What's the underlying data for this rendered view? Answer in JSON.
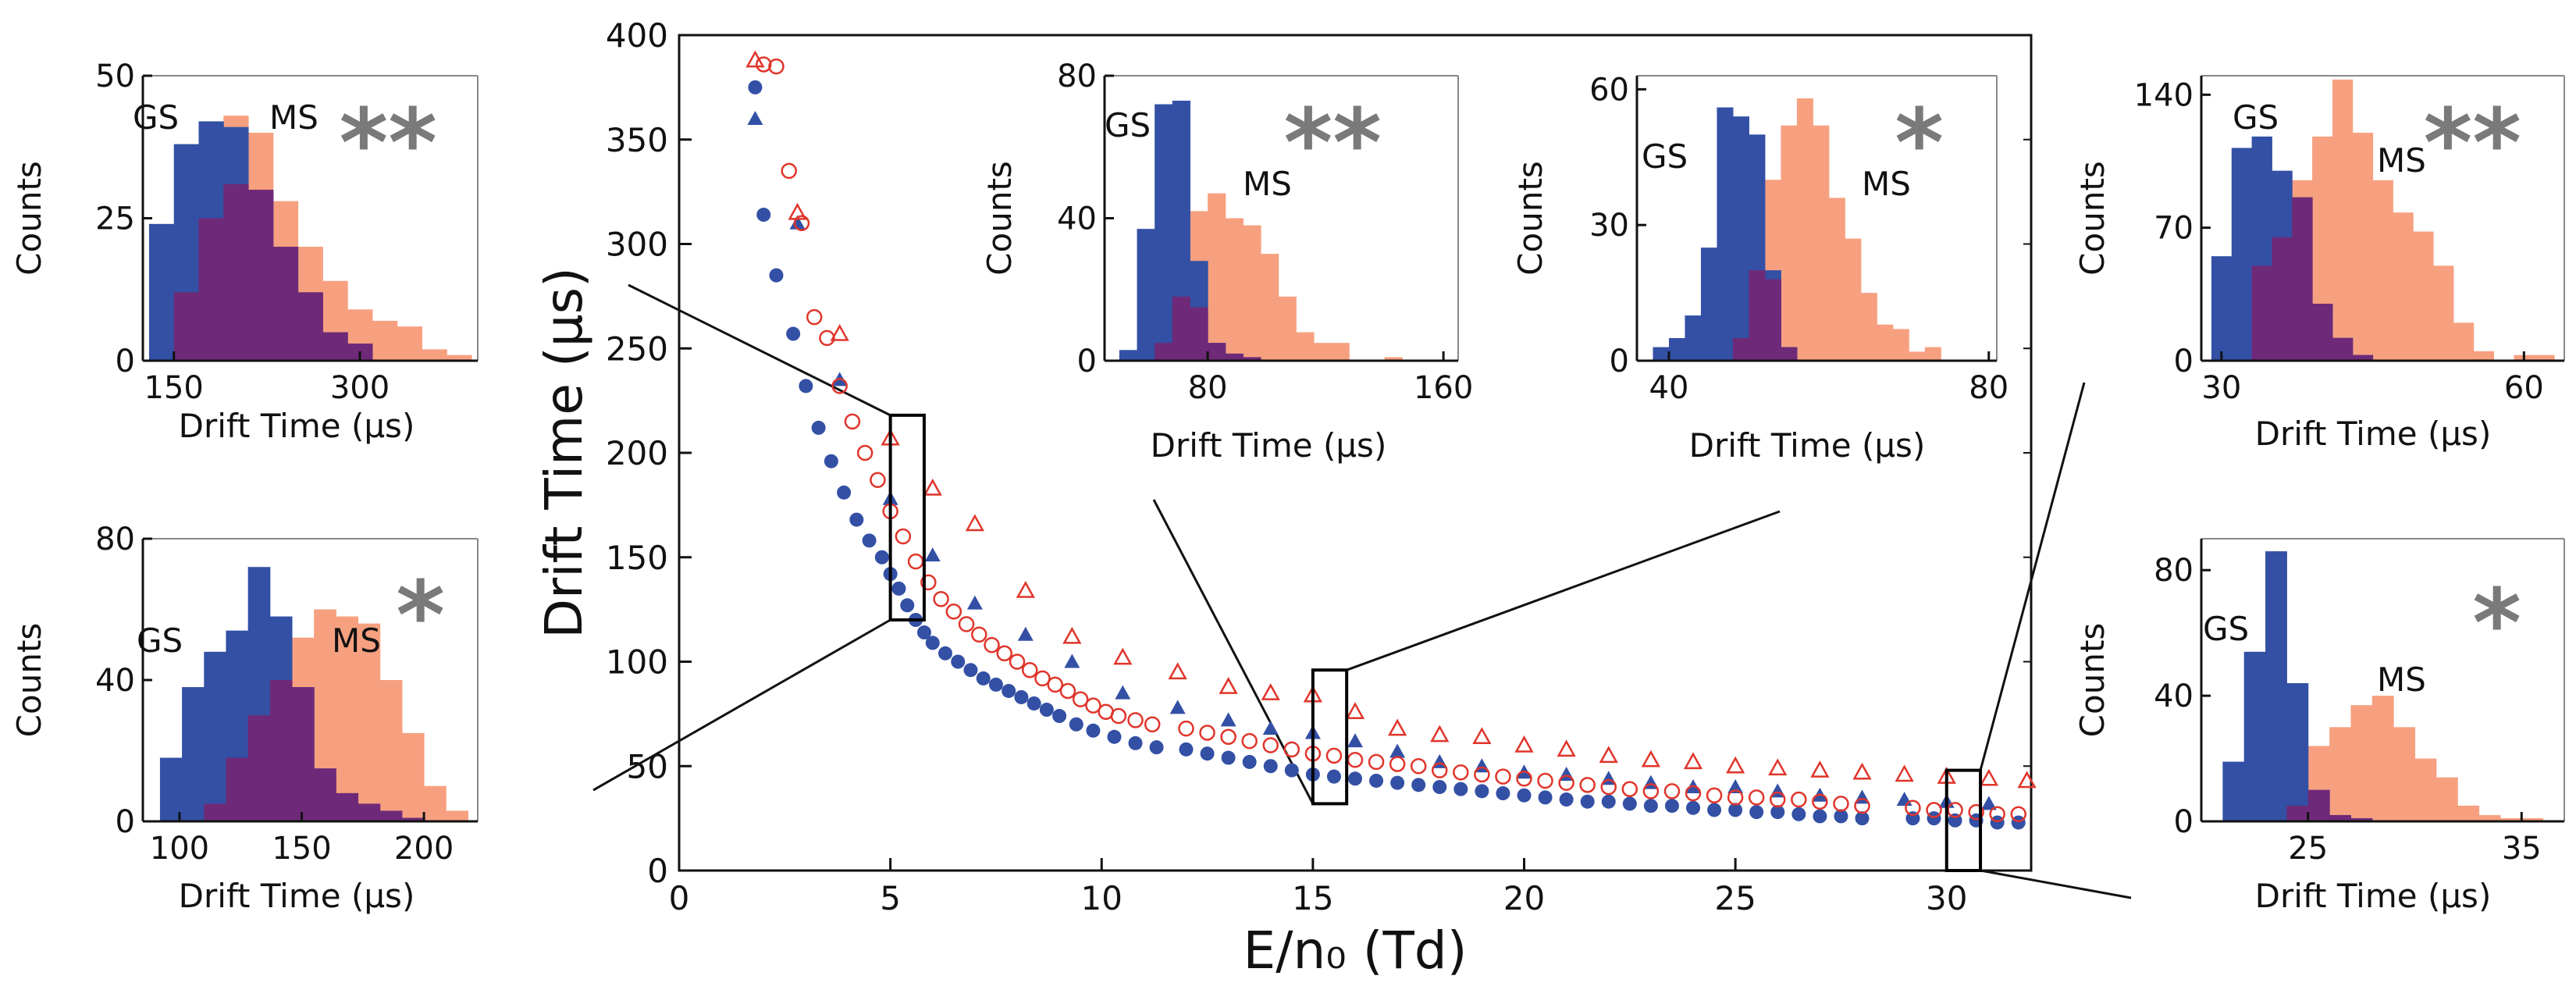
{
  "colors": {
    "gs": "#3350a5",
    "ms": "#f7a080",
    "overlap": "#6e2a78",
    "main_gs": "#3350a5",
    "main_ms": "#e0352b",
    "star": "#7a7a7a",
    "axis": "#111111"
  },
  "chart_data": [
    {
      "id": "main",
      "type": "scatter",
      "xlabel": "E/n₀ (Td)",
      "ylabel": "Drift Time (μs)",
      "xlim": [
        0,
        32
      ],
      "ylim": [
        0,
        400
      ],
      "xticks": [
        0,
        5,
        10,
        15,
        20,
        25,
        30
      ],
      "yticks": [
        0,
        50,
        100,
        150,
        200,
        250,
        300,
        350,
        400
      ],
      "series": [
        {
          "name": "GS filled circles",
          "marker": "filled-circle",
          "x": [
            1.8,
            2.0,
            2.3,
            2.7,
            3.0,
            3.3,
            3.6,
            3.9,
            4.2,
            4.5,
            4.8,
            5.0,
            5.2,
            5.4,
            5.6,
            5.8,
            6.0,
            6.3,
            6.6,
            6.9,
            7.2,
            7.5,
            7.8,
            8.1,
            8.4,
            8.7,
            9.0,
            9.4,
            9.8,
            10.3,
            10.8,
            11.3,
            12.0,
            12.5,
            13.0,
            13.5,
            14.0,
            14.5,
            15.0,
            15.5,
            16.0,
            16.5,
            17.0,
            17.5,
            18.0,
            18.5,
            19.0,
            19.5,
            20.0,
            20.5,
            21.0,
            21.5,
            22.0,
            22.5,
            23.0,
            23.5,
            24.0,
            24.5,
            25.0,
            25.5,
            26.0,
            26.5,
            27.0,
            27.5,
            28.0,
            29.2,
            29.7,
            30.2,
            30.7,
            31.2,
            31.7
          ],
          "y": [
            375,
            314,
            285,
            257,
            232,
            212,
            196,
            181,
            168,
            158,
            150,
            142,
            135,
            127,
            120,
            114,
            109,
            104,
            100,
            96,
            92,
            89,
            86,
            83,
            80,
            77,
            74,
            70,
            67,
            64,
            61,
            59,
            58,
            56,
            54,
            52,
            50,
            48,
            46,
            45,
            44,
            43,
            42,
            41,
            40,
            39,
            38,
            37,
            36,
            35,
            34,
            33,
            33,
            32,
            31,
            31,
            30,
            29,
            29,
            28,
            28,
            27,
            26,
            26,
            25,
            25,
            25,
            24,
            24,
            23,
            23
          ]
        },
        {
          "name": "GS filled triangles",
          "marker": "filled-triangle",
          "x": [
            1.8,
            2.8,
            3.8,
            5.0,
            6.0,
            7.0,
            8.2,
            9.3,
            10.5,
            11.8,
            13.0,
            14.0,
            15.0,
            16.0,
            17.0,
            18.0,
            19.0,
            20.0,
            21.0,
            22.0,
            23.0,
            24.0,
            25.0,
            26.0,
            27.0,
            28.0,
            29.0,
            30.0,
            31.0
          ],
          "y": [
            360,
            310,
            235,
            178,
            151,
            128,
            113,
            100,
            85,
            78,
            72,
            68,
            66,
            62,
            57,
            52,
            50,
            47,
            46,
            44,
            42,
            40,
            40,
            38,
            36,
            35,
            34,
            33,
            32
          ]
        },
        {
          "name": "MS open circles",
          "marker": "open-circle",
          "x": [
            2.0,
            2.3,
            2.6,
            2.9,
            3.2,
            3.5,
            3.8,
            4.1,
            4.4,
            4.7,
            5.0,
            5.3,
            5.6,
            5.9,
            6.2,
            6.5,
            6.8,
            7.1,
            7.4,
            7.7,
            8.0,
            8.3,
            8.6,
            8.9,
            9.2,
            9.5,
            9.8,
            10.1,
            10.4,
            10.8,
            11.2,
            12.0,
            12.5,
            13.0,
            13.5,
            14.0,
            14.5,
            15.0,
            15.5,
            16.0,
            16.5,
            17.0,
            17.5,
            18.0,
            18.5,
            19.0,
            19.5,
            20.0,
            20.5,
            21.0,
            21.5,
            22.0,
            22.5,
            23.0,
            23.5,
            24.0,
            24.5,
            25.0,
            25.5,
            26.0,
            26.5,
            27.0,
            27.5,
            28.0,
            29.2,
            29.7,
            30.2,
            30.7,
            31.2,
            31.7
          ],
          "y": [
            386,
            385,
            335,
            310,
            265,
            255,
            232,
            215,
            200,
            187,
            172,
            160,
            148,
            138,
            130,
            124,
            118,
            113,
            108,
            104,
            100,
            96,
            92,
            89,
            86,
            82,
            79,
            76,
            74,
            72,
            70,
            68,
            66,
            64,
            62,
            60,
            58,
            56,
            55,
            53,
            52,
            51,
            50,
            48,
            47,
            46,
            45,
            44,
            43,
            42,
            41,
            40,
            39,
            38,
            38,
            37,
            36,
            35,
            35,
            34,
            34,
            33,
            32,
            31,
            30,
            29,
            29,
            28,
            27,
            27
          ]
        },
        {
          "name": "MS open triangles",
          "marker": "open-triangle",
          "x": [
            1.8,
            2.8,
            3.8,
            5.0,
            6.0,
            7.0,
            8.2,
            9.3,
            10.5,
            11.8,
            13.0,
            14.0,
            15.0,
            16.0,
            17.0,
            18.0,
            19.0,
            20.0,
            21.0,
            22.0,
            23.0,
            24.0,
            25.0,
            26.0,
            27.0,
            28.0,
            29.0,
            30.0,
            31.0,
            31.9
          ],
          "y": [
            388,
            315,
            257,
            207,
            183,
            166,
            134,
            112,
            102,
            95,
            88,
            85,
            84,
            76,
            68,
            65,
            64,
            60,
            58,
            55,
            53,
            52,
            50,
            49,
            48,
            47,
            46,
            45,
            44,
            43
          ]
        }
      ],
      "highlight_boxes": [
        {
          "x_range": [
            5.0,
            5.8
          ],
          "y_range": [
            120,
            218
          ]
        },
        {
          "x_range": [
            15.0,
            15.8
          ],
          "y_range": [
            32,
            96
          ]
        },
        {
          "x_range": [
            30.0,
            30.8
          ],
          "y_range": [
            0,
            48
          ]
        }
      ]
    },
    {
      "id": "hist-5td-double",
      "type": "histogram",
      "xlabel": "Drift Time (μs)",
      "ylabel": "Counts",
      "xlim": [
        125,
        395
      ],
      "ylim": [
        0,
        50
      ],
      "xticks": [
        150,
        300
      ],
      "yticks": [
        0,
        25,
        50
      ],
      "gs_label": "GS",
      "ms_label": "MS",
      "marker": "**",
      "bin_edges": [
        130,
        150,
        170,
        190,
        210,
        230,
        250,
        270,
        290,
        310,
        330,
        350,
        370,
        390
      ],
      "gs_counts": [
        24,
        38,
        42,
        41,
        30,
        20,
        12,
        5,
        3,
        0,
        0,
        0,
        0
      ],
      "ms_counts": [
        0,
        12,
        25,
        43,
        40,
        28,
        20,
        14,
        9,
        7,
        6,
        2,
        1
      ],
      "overlap_counts": [
        0,
        12,
        25,
        31,
        30,
        20,
        12,
        5,
        3,
        0,
        0,
        0,
        0
      ]
    },
    {
      "id": "hist-5td-single",
      "type": "histogram",
      "xlabel": "Drift Time (μs)",
      "ylabel": "Counts",
      "xlim": [
        85,
        222
      ],
      "ylim": [
        0,
        80
      ],
      "xticks": [
        100,
        150,
        200
      ],
      "yticks": [
        0,
        40,
        80
      ],
      "gs_label": "GS",
      "ms_label": "MS",
      "marker": "*",
      "bin_edges": [
        92,
        101,
        110,
        119,
        128,
        137,
        146,
        155,
        164,
        173,
        182,
        191,
        200,
        209,
        218
      ],
      "gs_counts": [
        18,
        38,
        48,
        54,
        72,
        58,
        38,
        0,
        0,
        0,
        0,
        0,
        0,
        0
      ],
      "ms_counts": [
        0,
        0,
        5,
        18,
        30,
        40,
        52,
        60,
        58,
        56,
        40,
        25,
        10,
        3
      ],
      "overlap_counts": [
        0,
        0,
        5,
        18,
        30,
        40,
        38,
        15,
        8,
        5,
        3,
        1,
        0,
        0
      ]
    },
    {
      "id": "hist-15td-double",
      "type": "histogram",
      "xlabel": "Drift Time (μs)",
      "ylabel": "Counts",
      "xlim": [
        45,
        165
      ],
      "ylim": [
        0,
        80
      ],
      "xticks": [
        80,
        160
      ],
      "yticks": [
        0,
        40,
        80
      ],
      "gs_label": "GS",
      "ms_label": "MS",
      "marker": "**",
      "bin_edges": [
        50,
        56,
        62,
        68,
        74,
        80,
        86,
        92,
        98,
        104,
        110,
        116,
        122,
        128,
        134,
        140,
        146
      ],
      "gs_counts": [
        3,
        37,
        72,
        73,
        28,
        5,
        0,
        0,
        0,
        0,
        0,
        0,
        0,
        0,
        0,
        0
      ],
      "ms_counts": [
        0,
        0,
        5,
        28,
        42,
        47,
        40,
        38,
        30,
        18,
        8,
        5,
        5,
        0,
        0,
        1
      ],
      "overlap_counts": [
        0,
        0,
        5,
        18,
        15,
        5,
        2,
        1,
        0,
        0,
        0,
        0,
        0,
        0,
        0,
        0
      ]
    },
    {
      "id": "hist-15td-single",
      "type": "histogram",
      "xlabel": "Drift Time (μs)",
      "ylabel": "Counts",
      "xlim": [
        36,
        81
      ],
      "ylim": [
        0,
        63
      ],
      "xticks": [
        40,
        80
      ],
      "yticks": [
        0,
        30,
        60
      ],
      "gs_label": "GS",
      "ms_label": "MS",
      "marker": "*",
      "bin_edges": [
        38,
        40,
        42,
        44,
        46,
        48,
        50,
        52,
        54,
        56,
        58,
        60,
        62,
        64,
        66,
        68,
        70,
        72,
        74,
        76
      ],
      "gs_counts": [
        3,
        5,
        10,
        25,
        56,
        54,
        50,
        20,
        3,
        0,
        0,
        0,
        0,
        0,
        0,
        0,
        0,
        0,
        0
      ],
      "ms_counts": [
        0,
        0,
        0,
        0,
        0,
        5,
        20,
        40,
        52,
        58,
        52,
        36,
        27,
        15,
        8,
        7,
        2,
        3,
        0
      ],
      "overlap_counts": [
        0,
        0,
        0,
        0,
        0,
        5,
        20,
        18,
        3,
        0,
        0,
        0,
        0,
        0,
        0,
        0,
        0,
        0,
        0
      ]
    },
    {
      "id": "hist-30td-double",
      "type": "histogram",
      "xlabel": "Drift Time (μs)",
      "ylabel": "Counts",
      "xlim": [
        28,
        64
      ],
      "ylim": [
        0,
        150
      ],
      "xticks": [
        30,
        60
      ],
      "yticks": [
        0,
        70,
        140
      ],
      "gs_label": "GS",
      "ms_label": "MS",
      "marker": "**",
      "bin_edges": [
        29,
        31,
        33,
        35,
        37,
        39,
        41,
        43,
        45,
        47,
        49,
        51,
        53,
        55,
        57,
        59,
        61,
        63
      ],
      "gs_counts": [
        55,
        112,
        118,
        100,
        86,
        30,
        12,
        3,
        0,
        0,
        0,
        0,
        0,
        0,
        0,
        0,
        0
      ],
      "ms_counts": [
        0,
        0,
        50,
        65,
        95,
        118,
        148,
        120,
        95,
        78,
        68,
        50,
        20,
        5,
        0,
        3,
        3
      ],
      "overlap_counts": [
        0,
        0,
        50,
        65,
        86,
        30,
        12,
        3,
        0,
        0,
        0,
        0,
        0,
        0,
        0,
        0,
        0
      ]
    },
    {
      "id": "hist-30td-single",
      "type": "histogram",
      "xlabel": "Drift Time (μs)",
      "ylabel": "Counts",
      "xlim": [
        20,
        37
      ],
      "ylim": [
        0,
        90
      ],
      "xticks": [
        25,
        35
      ],
      "yticks": [
        0,
        40,
        80
      ],
      "gs_label": "GS",
      "ms_label": "MS",
      "marker": "*",
      "bin_edges": [
        21,
        22,
        23,
        24,
        25,
        26,
        27,
        28,
        29,
        30,
        31,
        32,
        33,
        34,
        35,
        36
      ],
      "gs_counts": [
        19,
        54,
        86,
        44,
        10,
        2,
        1,
        0,
        0,
        0,
        0,
        0,
        0,
        0,
        0
      ],
      "ms_counts": [
        0,
        0,
        0,
        5,
        24,
        30,
        37,
        40,
        30,
        20,
        14,
        5,
        2,
        1,
        1
      ],
      "overlap_counts": [
        0,
        0,
        0,
        5,
        10,
        2,
        1,
        0,
        0,
        0,
        0,
        0,
        0,
        0,
        0
      ]
    }
  ]
}
